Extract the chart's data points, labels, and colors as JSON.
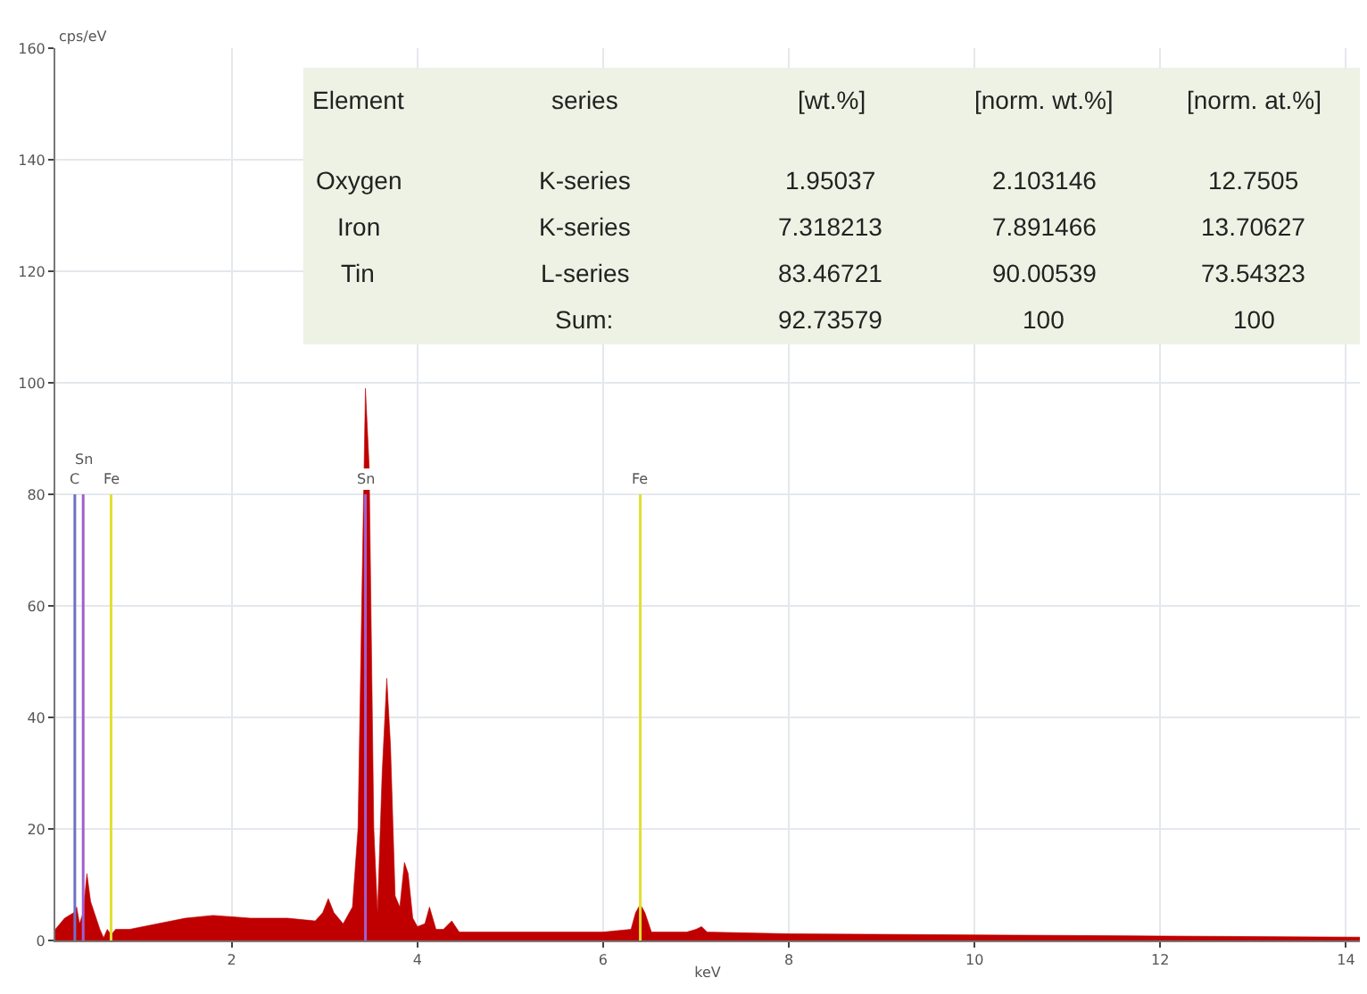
{
  "chart_data": {
    "type": "area",
    "xlabel": "keV",
    "ylabel": "cps/eV",
    "x": [
      0.1,
      0.2,
      0.3,
      0.33,
      0.36,
      0.4,
      0.44,
      0.48,
      0.52,
      0.58,
      0.62,
      0.66,
      0.7,
      0.75,
      0.9,
      1.2,
      1.5,
      1.8,
      2.2,
      2.6,
      2.9,
      2.98,
      3.04,
      3.1,
      3.2,
      3.3,
      3.36,
      3.4,
      3.44,
      3.48,
      3.53,
      3.57,
      3.62,
      3.67,
      3.71,
      3.76,
      3.81,
      3.86,
      3.9,
      3.95,
      4.0,
      4.08,
      4.13,
      4.2,
      4.28,
      4.37,
      4.45,
      4.6,
      5.0,
      6.0,
      6.3,
      6.35,
      6.4,
      6.45,
      6.52,
      6.9,
      7.0,
      7.06,
      7.12,
      8,
      10,
      12,
      14.15
    ],
    "series": [
      {
        "color": "#c00000",
        "values": [
          2,
          4,
          5,
          6,
          3,
          5,
          12,
          7,
          5,
          2,
          0.5,
          2,
          1,
          2,
          2,
          3,
          4,
          4.5,
          4,
          4,
          3.5,
          5,
          7.5,
          5,
          3,
          6,
          20,
          60,
          99,
          85,
          20,
          5,
          30,
          47,
          35,
          8,
          6,
          14,
          12,
          4,
          2.5,
          3,
          6,
          2,
          2,
          3.5,
          1.5,
          1.5,
          1.5,
          1.5,
          2,
          5,
          6.5,
          5,
          1.5,
          1.5,
          2,
          2.5,
          1.5,
          1.2,
          1,
          0.8,
          0.6
        ]
      }
    ],
    "xlim": [
      0.1,
      14.15
    ],
    "xticks": [
      2,
      4,
      6,
      8,
      10,
      12,
      14
    ],
    "ylim": [
      0,
      160
    ],
    "yticks": [
      0,
      20,
      40,
      60,
      80,
      100,
      120,
      140,
      160
    ],
    "grid": true,
    "ref_lines": [
      {
        "axis": "x",
        "value": 0.31,
        "label": "C",
        "color": "#7070c8"
      },
      {
        "axis": "x",
        "value": 0.4,
        "label": "Sn",
        "color": "#a060d0"
      },
      {
        "axis": "x",
        "value": 0.7,
        "label": "Fe",
        "color": "#e0e030"
      },
      {
        "axis": "x",
        "value": 3.44,
        "label": "Sn",
        "color": "#a060d0"
      },
      {
        "axis": "x",
        "value": 6.4,
        "label": "Fe",
        "color": "#e0e030"
      }
    ],
    "annotations": [
      "Element",
      "series",
      "[wt.%]",
      "[norm. wt.%]",
      "[norm. at.%]",
      "Oxygen",
      "K-series",
      "1.95037",
      "2.103146",
      "12.7505",
      "Iron",
      "K-series",
      "7.318213",
      "7.891466",
      "13.70627",
      "Tin",
      "L-series",
      "83.46721",
      "90.00539",
      "73.54323",
      "Sum:",
      "92.73579",
      "100",
      "100"
    ]
  }
}
